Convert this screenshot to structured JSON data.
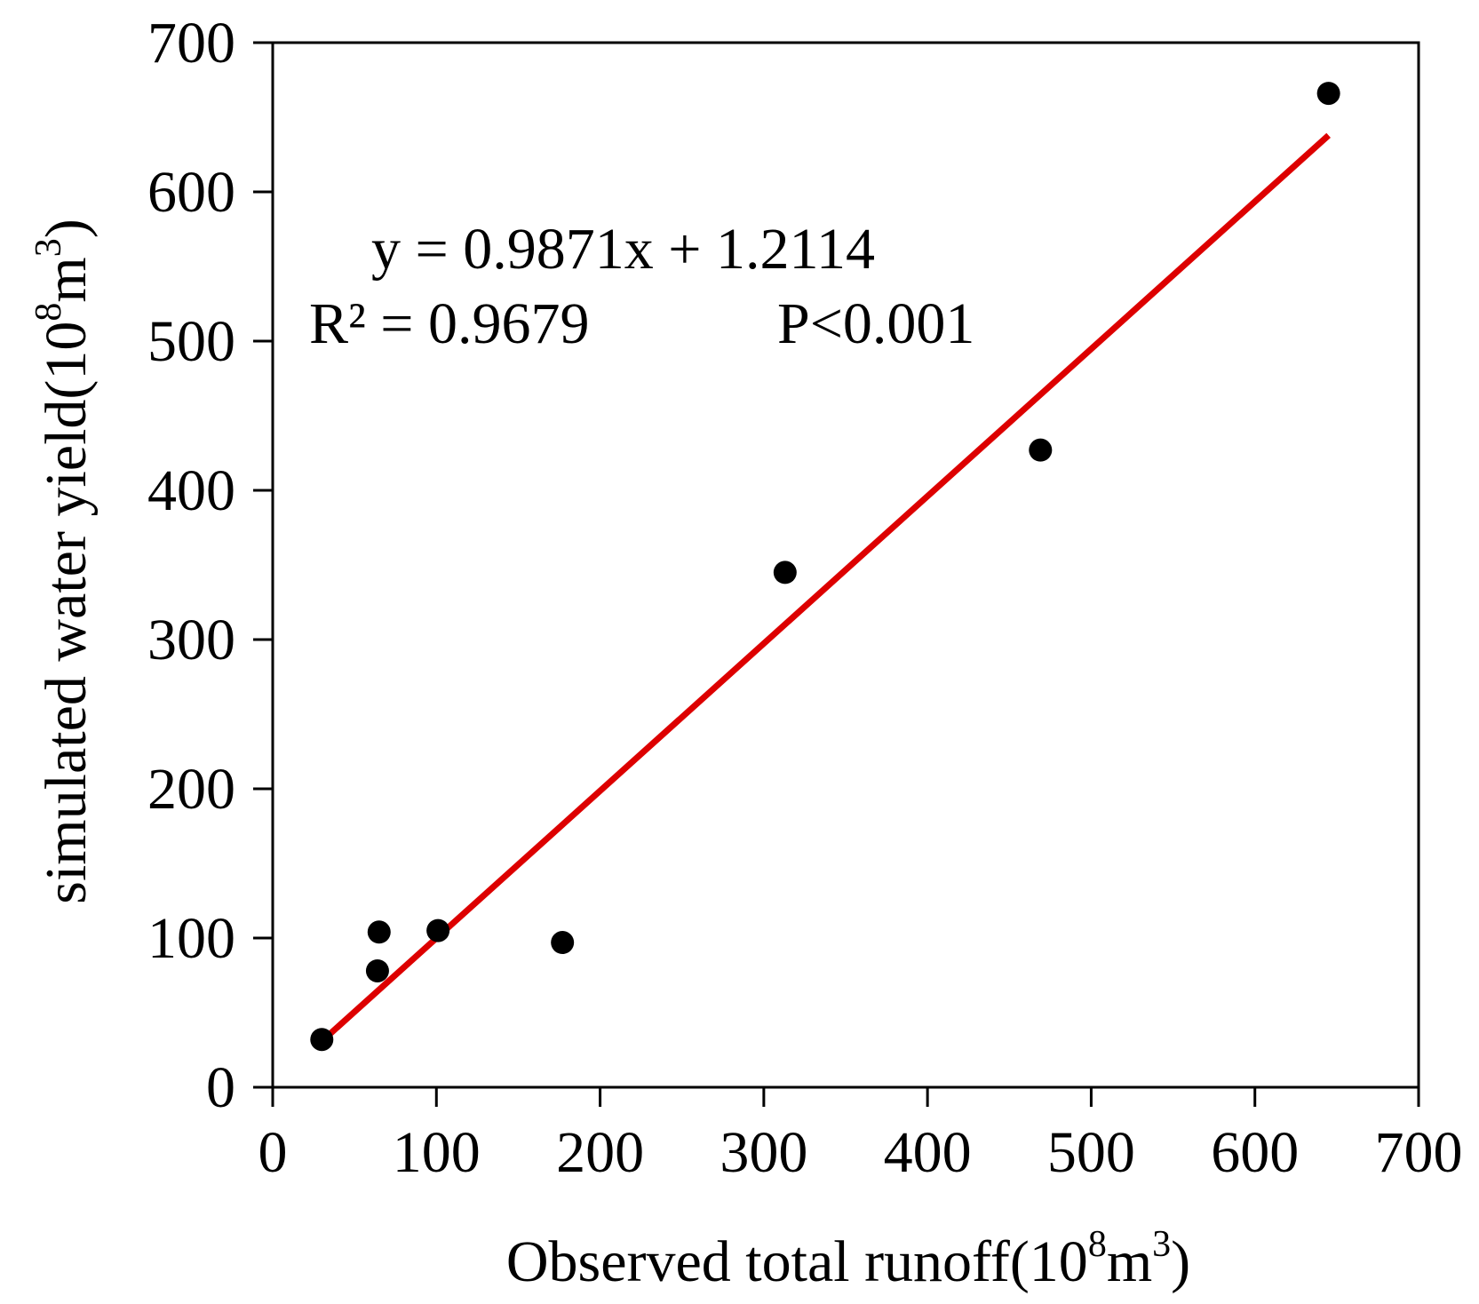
{
  "chart_data": {
    "type": "scatter",
    "title": "",
    "xlabel": {
      "main": "Observed total runoff(10",
      "sup1": "8",
      "mid": "m",
      "sup2": "3",
      "end": ")"
    },
    "ylabel": {
      "main": "simulated water yield(10",
      "sup1": "8",
      "mid": "m",
      "sup2": "3",
      "end": ")"
    },
    "xlim": [
      0,
      700
    ],
    "ylim": [
      0,
      700
    ],
    "xticks": [
      0,
      100,
      200,
      300,
      400,
      500,
      600,
      700
    ],
    "yticks": [
      0,
      100,
      200,
      300,
      400,
      500,
      600,
      700
    ],
    "grid": false,
    "colors": {
      "points": "#000000",
      "fit_line": "#dd0000",
      "axes": "#000000"
    },
    "points": [
      {
        "x": 30,
        "y": 32
      },
      {
        "x": 64,
        "y": 78
      },
      {
        "x": 65,
        "y": 104
      },
      {
        "x": 101,
        "y": 105
      },
      {
        "x": 177,
        "y": 97
      },
      {
        "x": 313,
        "y": 345
      },
      {
        "x": 469,
        "y": 427
      },
      {
        "x": 645,
        "y": 666
      }
    ],
    "fit": {
      "slope": 0.9871,
      "intercept": 1.2114,
      "x_range": [
        30,
        645
      ]
    },
    "annotations": {
      "equation": "y = 0.9871x + 1.2114",
      "r2": "R² = 0.9679",
      "p": "P<0.001"
    }
  }
}
